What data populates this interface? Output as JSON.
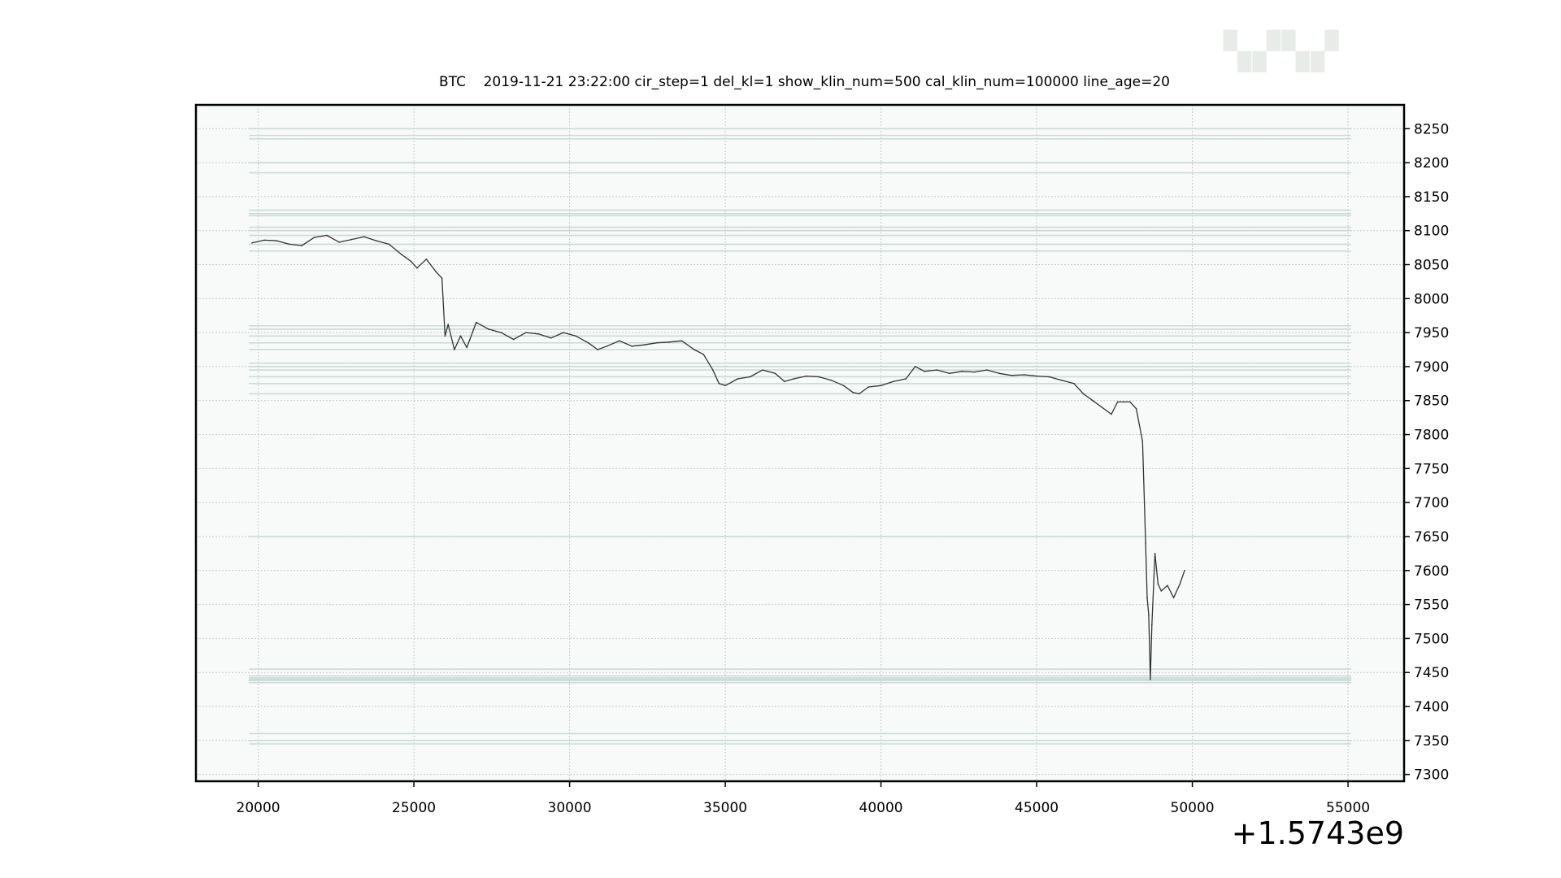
{
  "chart_data": {
    "type": "line",
    "title": "BTC    2019-11-21 23:22:00 cir_step=1 del_kl=1 show_klin_num=500 cal_klin_num=100000 line_age=20",
    "xlabel": "",
    "ylabel": "",
    "x_offset_label": "+1.5743e9",
    "xlim": [
      18000,
      56800
    ],
    "ylim": [
      7290,
      8285
    ],
    "xticks": [
      20000,
      25000,
      30000,
      35000,
      40000,
      45000,
      50000,
      55000
    ],
    "yticks": [
      7300,
      7350,
      7400,
      7450,
      7500,
      7550,
      7600,
      7650,
      7700,
      7750,
      7800,
      7850,
      7900,
      7950,
      8000,
      8050,
      8100,
      8150,
      8200,
      8250
    ],
    "grid": true,
    "y_axis_side": "right",
    "series": [
      {
        "color": "#333333",
        "points": [
          [
            19800,
            8082
          ],
          [
            20200,
            8086
          ],
          [
            20600,
            8085
          ],
          [
            21000,
            8080
          ],
          [
            21400,
            8078
          ],
          [
            21800,
            8090
          ],
          [
            22200,
            8093
          ],
          [
            22600,
            8083
          ],
          [
            23000,
            8087
          ],
          [
            23400,
            8091
          ],
          [
            23800,
            8085
          ],
          [
            24200,
            8080
          ],
          [
            24600,
            8065
          ],
          [
            24900,
            8055
          ],
          [
            25100,
            8045
          ],
          [
            25400,
            8058
          ],
          [
            25700,
            8040
          ],
          [
            25900,
            8030
          ],
          [
            26000,
            7945
          ],
          [
            26100,
            7962
          ],
          [
            26300,
            7925
          ],
          [
            26500,
            7945
          ],
          [
            26700,
            7928
          ],
          [
            27000,
            7965
          ],
          [
            27400,
            7955
          ],
          [
            27800,
            7950
          ],
          [
            28200,
            7940
          ],
          [
            28600,
            7950
          ],
          [
            29000,
            7948
          ],
          [
            29400,
            7942
          ],
          [
            29800,
            7950
          ],
          [
            30200,
            7945
          ],
          [
            30600,
            7935
          ],
          [
            30900,
            7925
          ],
          [
            31200,
            7930
          ],
          [
            31600,
            7938
          ],
          [
            32000,
            7930
          ],
          [
            32400,
            7932
          ],
          [
            32800,
            7935
          ],
          [
            33200,
            7936
          ],
          [
            33600,
            7938
          ],
          [
            34000,
            7925
          ],
          [
            34300,
            7918
          ],
          [
            34600,
            7895
          ],
          [
            34800,
            7875
          ],
          [
            35000,
            7872
          ],
          [
            35400,
            7882
          ],
          [
            35800,
            7885
          ],
          [
            36200,
            7895
          ],
          [
            36600,
            7890
          ],
          [
            36900,
            7878
          ],
          [
            37200,
            7882
          ],
          [
            37600,
            7886
          ],
          [
            38000,
            7885
          ],
          [
            38400,
            7880
          ],
          [
            38800,
            7872
          ],
          [
            39100,
            7862
          ],
          [
            39300,
            7860
          ],
          [
            39600,
            7870
          ],
          [
            40000,
            7872
          ],
          [
            40400,
            7878
          ],
          [
            40800,
            7882
          ],
          [
            41100,
            7900
          ],
          [
            41400,
            7893
          ],
          [
            41800,
            7895
          ],
          [
            42200,
            7890
          ],
          [
            42600,
            7893
          ],
          [
            43000,
            7892
          ],
          [
            43400,
            7895
          ],
          [
            43800,
            7890
          ],
          [
            44200,
            7887
          ],
          [
            44600,
            7888
          ],
          [
            45000,
            7886
          ],
          [
            45400,
            7885
          ],
          [
            45800,
            7880
          ],
          [
            46200,
            7875
          ],
          [
            46500,
            7860
          ],
          [
            46800,
            7850
          ],
          [
            47100,
            7840
          ],
          [
            47400,
            7830
          ],
          [
            47600,
            7848
          ],
          [
            47800,
            7848
          ],
          [
            48000,
            7848
          ],
          [
            48200,
            7838
          ],
          [
            48400,
            7790
          ],
          [
            48500,
            7640
          ],
          [
            48550,
            7560
          ],
          [
            48600,
            7535
          ],
          [
            48650,
            7440
          ],
          [
            48700,
            7520
          ],
          [
            48800,
            7625
          ],
          [
            48900,
            7580
          ],
          [
            49000,
            7570
          ],
          [
            49200,
            7578
          ],
          [
            49400,
            7560
          ],
          [
            49600,
            7580
          ],
          [
            49750,
            7600
          ]
        ]
      }
    ],
    "horizontal_levels": [
      8250,
      8240,
      8235,
      8200,
      8185,
      8130,
      8125,
      8122,
      8105,
      8100,
      8093,
      8080,
      8070,
      7960,
      7955,
      7945,
      7935,
      7925,
      7905,
      7900,
      7895,
      7885,
      7875,
      7860,
      7650,
      7455,
      7445,
      7442,
      7440,
      7438,
      7435,
      7360,
      7350,
      7345
    ],
    "colors": {
      "level_line": "#c7d8d6",
      "price_line": "#333333",
      "plot_background": "#f7faf8",
      "grid": "#c5cdca"
    }
  }
}
